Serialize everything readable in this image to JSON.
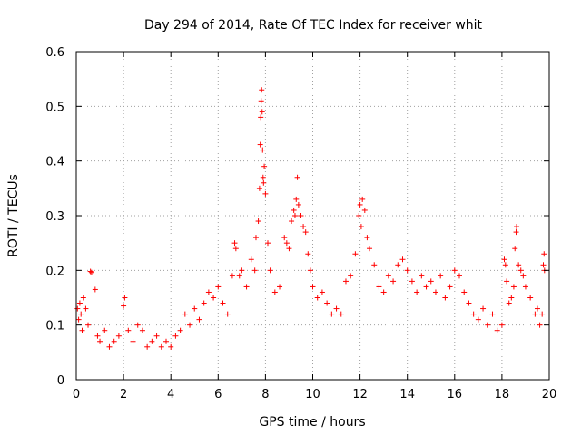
{
  "chart_data": {
    "type": "scatter",
    "title": "Day 294 of 2014, Rate Of TEC Index for receiver whit",
    "xlabel": "GPS time / hours",
    "ylabel": "ROTI / TECUs",
    "xlim": [
      0,
      20
    ],
    "ylim": [
      0,
      0.6
    ],
    "grid": true,
    "marker": "+",
    "marker_color": "#ff0000",
    "x_ticks": [
      {
        "value": 0,
        "label": "0"
      },
      {
        "value": 2,
        "label": "2"
      },
      {
        "value": 4,
        "label": "4"
      },
      {
        "value": 6,
        "label": "6"
      },
      {
        "value": 8,
        "label": "8"
      },
      {
        "value": 10,
        "label": "10"
      },
      {
        "value": 12,
        "label": "12"
      },
      {
        "value": 14,
        "label": "14"
      },
      {
        "value": 16,
        "label": "16"
      },
      {
        "value": 18,
        "label": "18"
      },
      {
        "value": 20,
        "label": "20"
      }
    ],
    "y_ticks": [
      {
        "value": 0,
        "label": "0"
      },
      {
        "value": 0.1,
        "label": "0.1"
      },
      {
        "value": 0.2,
        "label": "0.2"
      },
      {
        "value": 0.3,
        "label": "0.3"
      },
      {
        "value": 0.4,
        "label": "0.4"
      },
      {
        "value": 0.5,
        "label": "0.5"
      },
      {
        "value": 0.6,
        "label": "0.6"
      }
    ],
    "series": [
      {
        "name": "ROTI",
        "points": [
          [
            0.05,
            0.13
          ],
          [
            0.1,
            0.11
          ],
          [
            0.15,
            0.14
          ],
          [
            0.2,
            0.12
          ],
          [
            0.25,
            0.09
          ],
          [
            0.3,
            0.15
          ],
          [
            0.4,
            0.13
          ],
          [
            0.5,
            0.1
          ],
          [
            0.6,
            0.198
          ],
          [
            0.65,
            0.196
          ],
          [
            0.8,
            0.165
          ],
          [
            0.9,
            0.08
          ],
          [
            1.0,
            0.07
          ],
          [
            1.2,
            0.09
          ],
          [
            1.4,
            0.06
          ],
          [
            1.6,
            0.07
          ],
          [
            1.8,
            0.08
          ],
          [
            2.0,
            0.135
          ],
          [
            2.05,
            0.15
          ],
          [
            2.2,
            0.09
          ],
          [
            2.4,
            0.07
          ],
          [
            2.6,
            0.1
          ],
          [
            2.8,
            0.09
          ],
          [
            3.0,
            0.06
          ],
          [
            3.2,
            0.07
          ],
          [
            3.4,
            0.08
          ],
          [
            3.6,
            0.06
          ],
          [
            3.8,
            0.07
          ],
          [
            4.0,
            0.06
          ],
          [
            4.2,
            0.08
          ],
          [
            4.4,
            0.09
          ],
          [
            4.6,
            0.12
          ],
          [
            4.8,
            0.1
          ],
          [
            5.0,
            0.13
          ],
          [
            5.2,
            0.11
          ],
          [
            5.4,
            0.14
          ],
          [
            5.6,
            0.16
          ],
          [
            5.8,
            0.15
          ],
          [
            6.0,
            0.17
          ],
          [
            6.2,
            0.14
          ],
          [
            6.4,
            0.12
          ],
          [
            6.6,
            0.19
          ],
          [
            6.7,
            0.25
          ],
          [
            6.75,
            0.24
          ],
          [
            6.9,
            0.19
          ],
          [
            7.0,
            0.2
          ],
          [
            7.2,
            0.17
          ],
          [
            7.4,
            0.22
          ],
          [
            7.55,
            0.2
          ],
          [
            7.6,
            0.26
          ],
          [
            7.7,
            0.29
          ],
          [
            7.75,
            0.35
          ],
          [
            7.78,
            0.43
          ],
          [
            7.8,
            0.48
          ],
          [
            7.82,
            0.51
          ],
          [
            7.84,
            0.53
          ],
          [
            7.86,
            0.49
          ],
          [
            7.88,
            0.42
          ],
          [
            7.9,
            0.37
          ],
          [
            7.92,
            0.36
          ],
          [
            7.95,
            0.39
          ],
          [
            8.0,
            0.34
          ],
          [
            8.1,
            0.25
          ],
          [
            8.2,
            0.2
          ],
          [
            8.4,
            0.16
          ],
          [
            8.6,
            0.17
          ],
          [
            8.8,
            0.26
          ],
          [
            8.9,
            0.25
          ],
          [
            9.0,
            0.24
          ],
          [
            9.1,
            0.29
          ],
          [
            9.2,
            0.31
          ],
          [
            9.25,
            0.3
          ],
          [
            9.3,
            0.33
          ],
          [
            9.35,
            0.37
          ],
          [
            9.4,
            0.32
          ],
          [
            9.5,
            0.3
          ],
          [
            9.6,
            0.28
          ],
          [
            9.7,
            0.27
          ],
          [
            9.8,
            0.23
          ],
          [
            9.9,
            0.2
          ],
          [
            10.0,
            0.17
          ],
          [
            10.2,
            0.15
          ],
          [
            10.4,
            0.16
          ],
          [
            10.6,
            0.14
          ],
          [
            10.8,
            0.12
          ],
          [
            11.0,
            0.13
          ],
          [
            11.2,
            0.12
          ],
          [
            11.4,
            0.18
          ],
          [
            11.6,
            0.19
          ],
          [
            11.8,
            0.23
          ],
          [
            11.95,
            0.3
          ],
          [
            12.0,
            0.32
          ],
          [
            12.05,
            0.28
          ],
          [
            12.1,
            0.33
          ],
          [
            12.2,
            0.31
          ],
          [
            12.3,
            0.26
          ],
          [
            12.4,
            0.24
          ],
          [
            12.6,
            0.21
          ],
          [
            12.8,
            0.17
          ],
          [
            13.0,
            0.16
          ],
          [
            13.2,
            0.19
          ],
          [
            13.4,
            0.18
          ],
          [
            13.6,
            0.21
          ],
          [
            13.8,
            0.22
          ],
          [
            14.0,
            0.2
          ],
          [
            14.2,
            0.18
          ],
          [
            14.4,
            0.16
          ],
          [
            14.6,
            0.19
          ],
          [
            14.8,
            0.17
          ],
          [
            15.0,
            0.18
          ],
          [
            15.2,
            0.16
          ],
          [
            15.4,
            0.19
          ],
          [
            15.6,
            0.15
          ],
          [
            15.8,
            0.17
          ],
          [
            16.0,
            0.2
          ],
          [
            16.2,
            0.19
          ],
          [
            16.4,
            0.16
          ],
          [
            16.6,
            0.14
          ],
          [
            16.8,
            0.12
          ],
          [
            17.0,
            0.11
          ],
          [
            17.2,
            0.13
          ],
          [
            17.4,
            0.1
          ],
          [
            17.6,
            0.12
          ],
          [
            17.8,
            0.09
          ],
          [
            18.0,
            0.1
          ],
          [
            18.1,
            0.22
          ],
          [
            18.15,
            0.21
          ],
          [
            18.2,
            0.18
          ],
          [
            18.3,
            0.14
          ],
          [
            18.4,
            0.15
          ],
          [
            18.5,
            0.17
          ],
          [
            18.55,
            0.24
          ],
          [
            18.6,
            0.27
          ],
          [
            18.62,
            0.28
          ],
          [
            18.7,
            0.21
          ],
          [
            18.8,
            0.2
          ],
          [
            18.9,
            0.19
          ],
          [
            19.0,
            0.17
          ],
          [
            19.2,
            0.15
          ],
          [
            19.4,
            0.12
          ],
          [
            19.5,
            0.13
          ],
          [
            19.6,
            0.1
          ],
          [
            19.7,
            0.12
          ],
          [
            19.75,
            0.21
          ],
          [
            19.78,
            0.23
          ],
          [
            19.8,
            0.2
          ]
        ]
      }
    ]
  }
}
